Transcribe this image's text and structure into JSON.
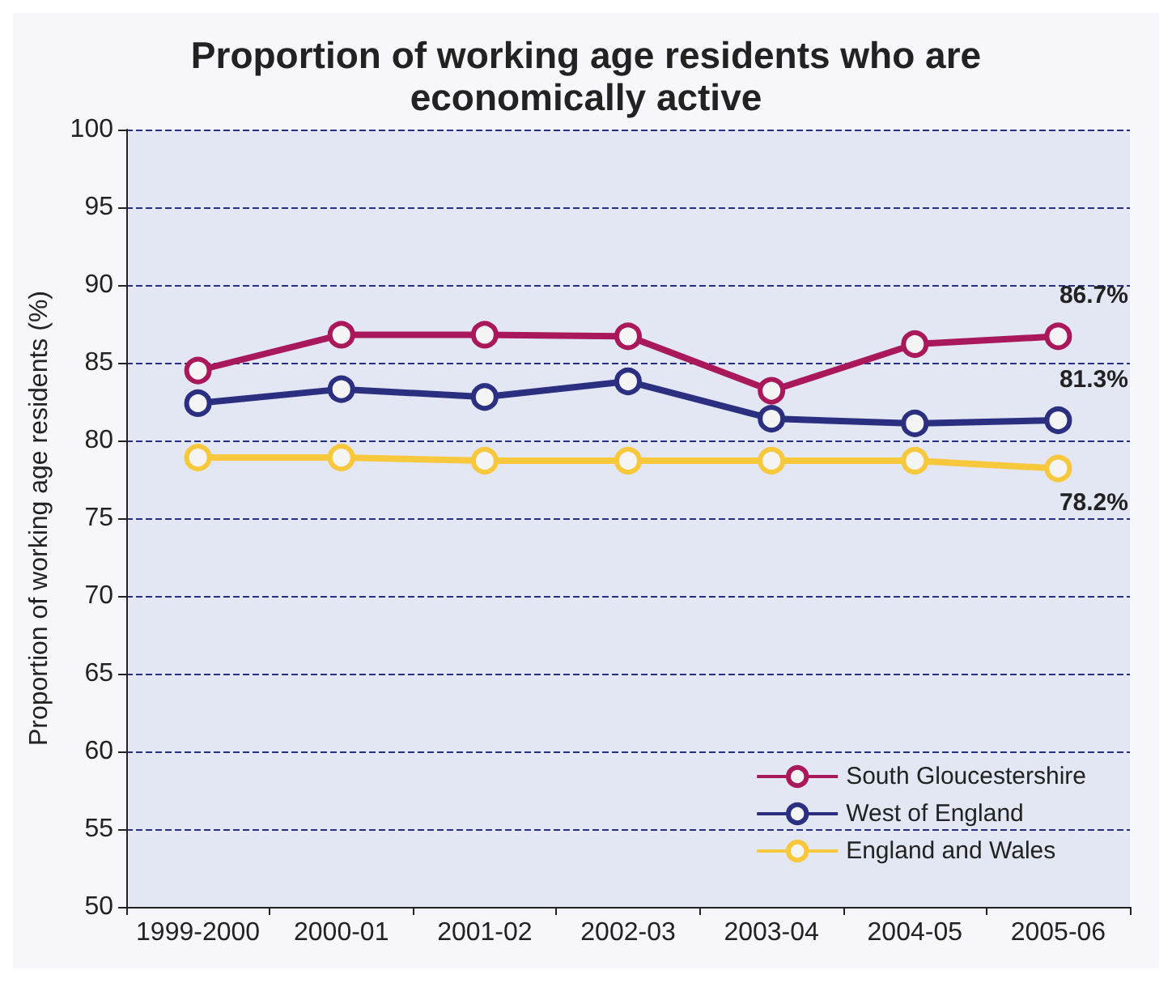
{
  "chart_data": {
    "type": "line",
    "title": "Proportion of working age residents who are\neconomically active",
    "ylabel": "Proportion of working age residents (%)",
    "categories": [
      "1999-2000",
      "2000-01",
      "2001-02",
      "2002-03",
      "2003-04",
      "2004-05",
      "2005-06"
    ],
    "series": [
      {
        "name": "South Gloucestershire",
        "color": "#a8185a",
        "values": [
          84.5,
          86.8,
          86.8,
          86.7,
          83.2,
          86.2,
          86.7
        ],
        "value_labels": [
          null,
          null,
          null,
          null,
          null,
          null,
          "86.7%"
        ]
      },
      {
        "name": "West of England",
        "color": "#2b2f80",
        "values": [
          82.4,
          83.3,
          82.8,
          83.8,
          81.4,
          81.1,
          81.3
        ],
        "value_labels": [
          null,
          null,
          null,
          null,
          null,
          null,
          "81.3%"
        ]
      },
      {
        "name": "England and Wales",
        "color": "#f8c83c",
        "values": [
          78.9,
          78.9,
          78.7,
          78.7,
          78.7,
          78.7,
          78.2
        ],
        "value_labels": [
          null,
          null,
          null,
          null,
          null,
          null,
          "78.2%"
        ]
      }
    ],
    "ylim": [
      50,
      100
    ],
    "yticks": [
      50,
      55,
      60,
      65,
      70,
      75,
      80,
      85,
      90,
      95,
      100
    ],
    "grid": "y",
    "legend": "bottom right",
    "marker": "circle",
    "line_style": "solid"
  }
}
